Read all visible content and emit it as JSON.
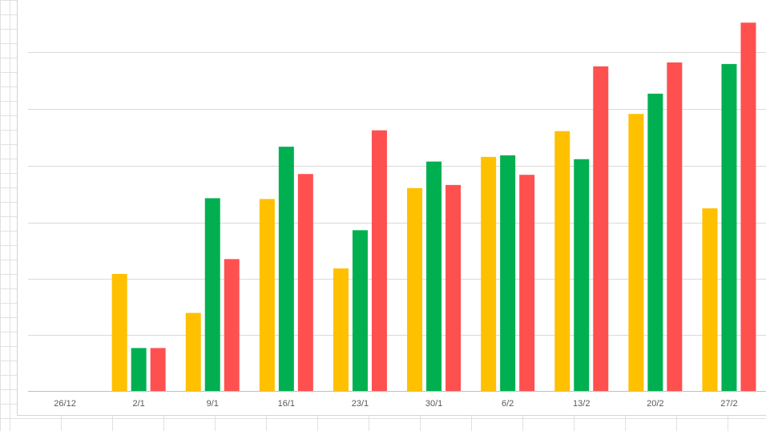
{
  "chart_data": {
    "type": "bar",
    "categories": [
      "26/12",
      "2/1",
      "9/1",
      "16/1",
      "23/1",
      "30/1",
      "6/2",
      "13/2",
      "20/2",
      "27/2"
    ],
    "series": [
      {
        "color": "#ffc000",
        "values": [
          0,
          150,
          100,
          246,
          157,
          260,
          300,
          333,
          355,
          234
        ]
      },
      {
        "color": "#00b050",
        "values": [
          0,
          55,
          247,
          313,
          206,
          294,
          302,
          297,
          381,
          419
        ]
      },
      {
        "color": "#ff5050",
        "values": [
          0,
          55,
          169,
          278,
          334,
          264,
          277,
          416,
          421,
          472
        ]
      }
    ],
    "ylim": [
      0,
      500
    ],
    "y_gridlines": [
      72,
      144,
      216,
      289,
      361,
      434
    ],
    "grid": true,
    "y_tick_labels_visible": false,
    "colors": {
      "gridline": "#d9d9d9",
      "axis": "#bfbfbf",
      "tick_text": "#595959"
    }
  }
}
